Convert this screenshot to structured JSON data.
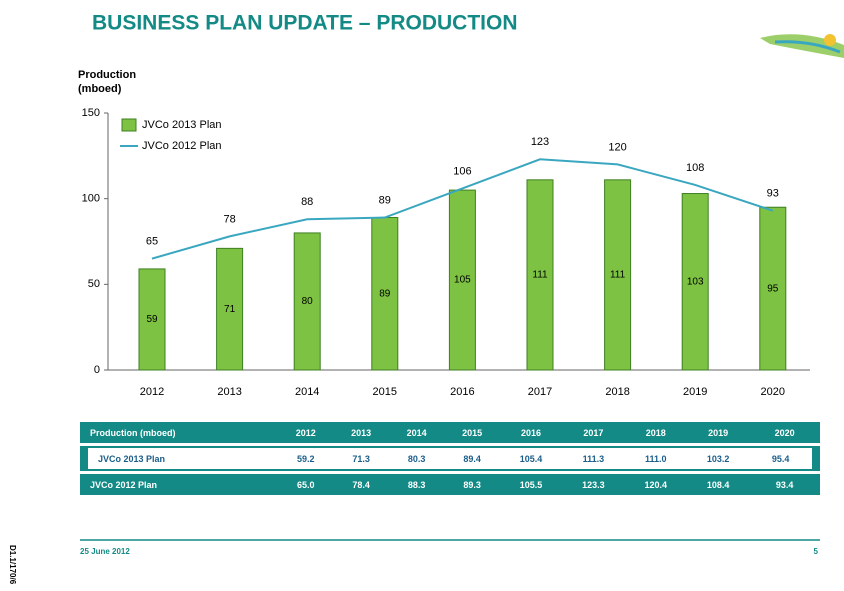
{
  "title": "BUSINESS PLAN UPDATE – PRODUCTION",
  "chart_data": {
    "type": "bar",
    "ylabel": [
      "Production",
      "(mboed)"
    ],
    "categories": [
      "2012",
      "2013",
      "2014",
      "2015",
      "2016",
      "2017",
      "2018",
      "2019",
      "2020"
    ],
    "series": [
      {
        "name": "JVCo 2013 Plan",
        "type": "bar",
        "color": "#7dc242",
        "values": [
          59,
          71,
          80,
          89,
          105,
          111,
          111,
          103,
          95
        ]
      },
      {
        "name": "JVCo 2012 Plan",
        "type": "line",
        "color": "#3aa7c0",
        "values": [
          65,
          78,
          88,
          89,
          106,
          123,
          120,
          108,
          93
        ]
      }
    ],
    "ylim": [
      0,
      150
    ],
    "yticks": [
      0,
      50,
      100,
      150
    ],
    "legend": "upper left"
  },
  "table": {
    "header": [
      "Production (mboed)",
      "2012",
      "2013",
      "2014",
      "2015",
      "2016",
      "2017",
      "2018",
      "2019",
      "2020"
    ],
    "rows": [
      [
        "JVCo 2013 Plan",
        "59.2",
        "71.3",
        "80.3",
        "89.4",
        "105.4",
        "111.3",
        "111.0",
        "103.2",
        "95.4"
      ],
      [
        "JVCo 2012 Plan",
        "65.0",
        "78.4",
        "88.3",
        "89.3",
        "105.5",
        "123.3",
        "120.4",
        "108.4",
        "93.4"
      ]
    ]
  },
  "footer": {
    "date": "25 June 2012",
    "page": "5"
  },
  "side_note": "D1.1/170/6"
}
